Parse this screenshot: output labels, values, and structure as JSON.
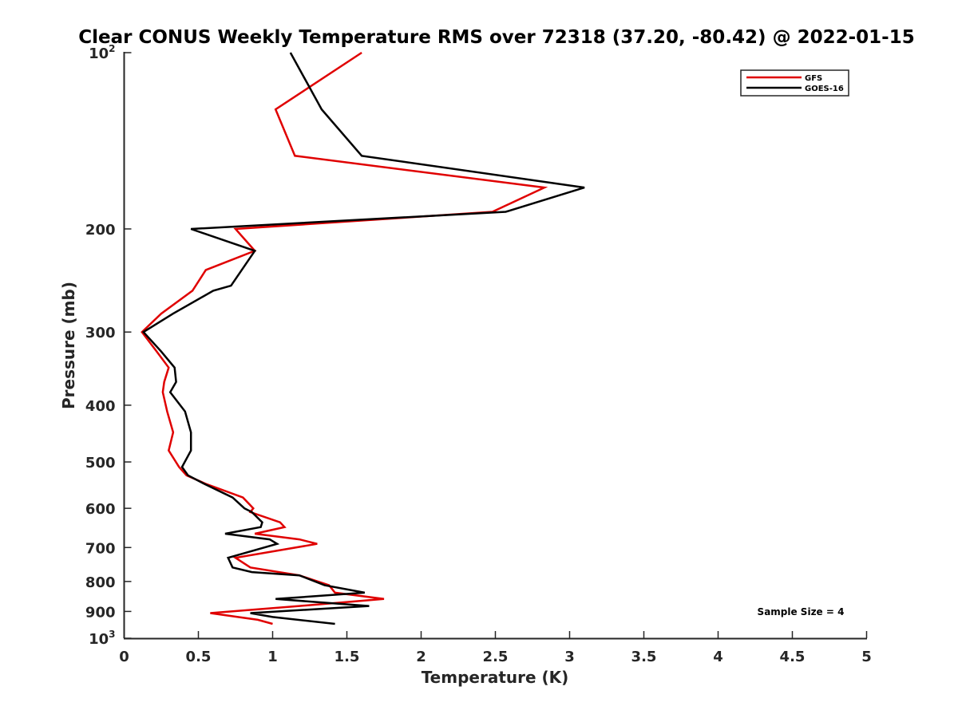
{
  "chart_data": {
    "type": "line",
    "title": "Clear CONUS Weekly Temperature RMS over 72318 (37.20, -80.42) @ 2022-01-15",
    "xlabel": "Temperature (K)",
    "ylabel": "Pressure (mb)",
    "xlim": [
      0,
      5
    ],
    "ylim": [
      1000,
      100
    ],
    "yscale": "log",
    "y_reversed": true,
    "grid": false,
    "legend_position": "top-right",
    "x_ticks": [
      "0",
      "0.5",
      "1",
      "1.5",
      "2",
      "2.5",
      "3",
      "3.5",
      "4",
      "4.5",
      "5"
    ],
    "y_ticks": [
      {
        "value": 100,
        "base": "10",
        "exp": "2"
      },
      {
        "value": 200,
        "label": "200"
      },
      {
        "value": 300,
        "label": "300"
      },
      {
        "value": 400,
        "label": "400"
      },
      {
        "value": 500,
        "label": "500"
      },
      {
        "value": 600,
        "label": "600"
      },
      {
        "value": 700,
        "label": "700"
      },
      {
        "value": 800,
        "label": "800"
      },
      {
        "value": 900,
        "label": "900"
      },
      {
        "value": 1000,
        "base": "10",
        "exp": "3"
      }
    ],
    "annotation": "Sample Size = 4",
    "series": [
      {
        "name": "GFS",
        "color": "#e00000",
        "points": [
          [
            1.6,
            100
          ],
          [
            1.02,
            125
          ],
          [
            1.15,
            150
          ],
          [
            2.83,
            170
          ],
          [
            2.48,
            187
          ],
          [
            0.75,
            200
          ],
          [
            0.88,
            218
          ],
          [
            0.55,
            235
          ],
          [
            0.46,
            255
          ],
          [
            0.25,
            279
          ],
          [
            0.12,
            300
          ],
          [
            0.22,
            324
          ],
          [
            0.3,
            345
          ],
          [
            0.27,
            365
          ],
          [
            0.26,
            380
          ],
          [
            0.29,
            410
          ],
          [
            0.33,
            445
          ],
          [
            0.3,
            478
          ],
          [
            0.37,
            510
          ],
          [
            0.42,
            527
          ],
          [
            0.55,
            545
          ],
          [
            0.8,
            575
          ],
          [
            0.87,
            600
          ],
          [
            0.85,
            609
          ],
          [
            1.05,
            634
          ],
          [
            1.08,
            646
          ],
          [
            0.88,
            663
          ],
          [
            1.18,
            678
          ],
          [
            1.3,
            690
          ],
          [
            0.75,
            729
          ],
          [
            0.85,
            757
          ],
          [
            1.18,
            781
          ],
          [
            1.38,
            812
          ],
          [
            1.42,
            836
          ],
          [
            1.75,
            857
          ],
          [
            1.18,
            881
          ],
          [
            0.58,
            906
          ],
          [
            0.9,
            930
          ],
          [
            1.0,
            945
          ]
        ]
      },
      {
        "name": "GOES-16",
        "color": "#000000",
        "points": [
          [
            1.12,
            100
          ],
          [
            1.33,
            125
          ],
          [
            1.6,
            150
          ],
          [
            3.1,
            170
          ],
          [
            2.57,
            187
          ],
          [
            0.45,
            200
          ],
          [
            0.88,
            218
          ],
          [
            0.72,
            250
          ],
          [
            0.6,
            255
          ],
          [
            0.33,
            279
          ],
          [
            0.13,
            300
          ],
          [
            0.25,
            324
          ],
          [
            0.34,
            345
          ],
          [
            0.35,
            365
          ],
          [
            0.31,
            380
          ],
          [
            0.41,
            410
          ],
          [
            0.45,
            445
          ],
          [
            0.45,
            478
          ],
          [
            0.39,
            510
          ],
          [
            0.43,
            527
          ],
          [
            0.54,
            545
          ],
          [
            0.73,
            575
          ],
          [
            0.81,
            600
          ],
          [
            0.86,
            609
          ],
          [
            0.93,
            634
          ],
          [
            0.92,
            646
          ],
          [
            0.68,
            663
          ],
          [
            0.98,
            678
          ],
          [
            1.03,
            690
          ],
          [
            0.7,
            729
          ],
          [
            0.73,
            757
          ],
          [
            0.86,
            771
          ],
          [
            1.18,
            781
          ],
          [
            1.35,
            812
          ],
          [
            1.62,
            836
          ],
          [
            1.02,
            857
          ],
          [
            1.65,
            881
          ],
          [
            0.85,
            906
          ],
          [
            1.0,
            920
          ],
          [
            1.42,
            945
          ]
        ]
      }
    ]
  }
}
